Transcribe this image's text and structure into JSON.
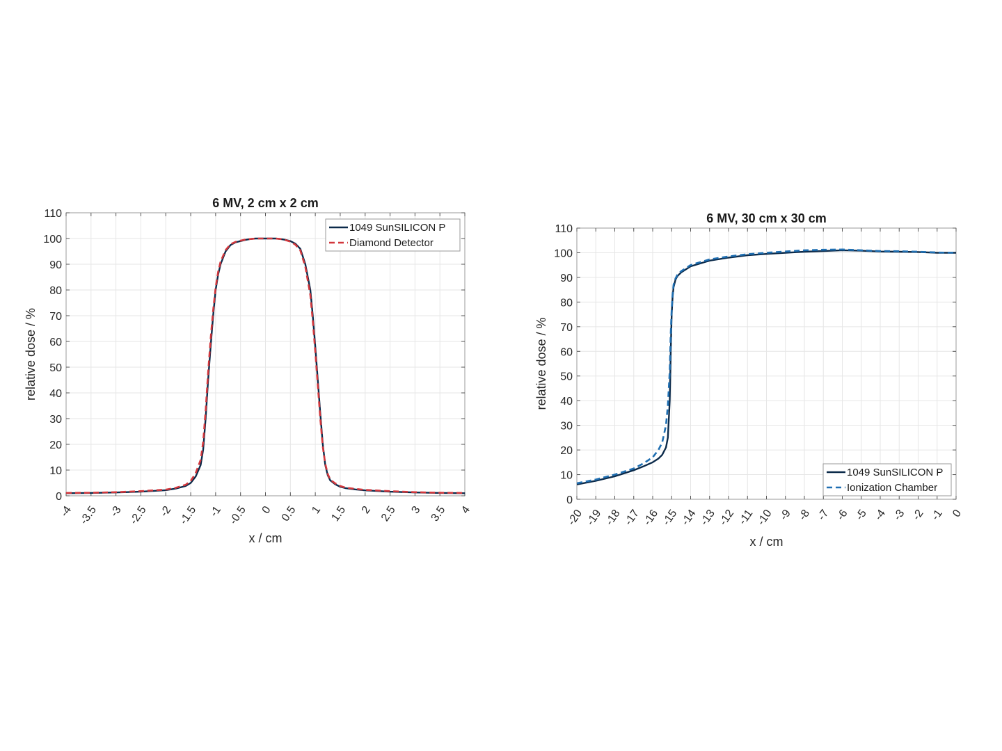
{
  "chart_data": [
    {
      "type": "line",
      "title": "6 MV, 2 cm x 2 cm",
      "xlabel": "x / cm",
      "ylabel": "relative dose / %",
      "xlim": [
        -4,
        4
      ],
      "ylim": [
        0,
        110
      ],
      "xticks": [
        -4,
        -3.5,
        -3,
        -2.5,
        -2,
        -1.5,
        -1,
        -0.5,
        0,
        0.5,
        1,
        1.5,
        2,
        2.5,
        3,
        3.5,
        4
      ],
      "xtick_labels": [
        "-4",
        "-3.5",
        "-3",
        "-2.5",
        "-2",
        "-1.5",
        "-1",
        "-0.5",
        "0",
        "0.5",
        "1",
        "1.5",
        "2",
        "2.5",
        "3",
        "3.5",
        "4"
      ],
      "yticks": [
        0,
        10,
        20,
        30,
        40,
        50,
        60,
        70,
        80,
        90,
        100,
        110
      ],
      "ytick_labels": [
        "0",
        "10",
        "20",
        "30",
        "40",
        "50",
        "60",
        "70",
        "80",
        "90",
        "100",
        "110"
      ],
      "grid": true,
      "legend": "top-right",
      "series": [
        {
          "name": "1049 SunSILICON P",
          "color": "#0b2a4a",
          "dash": "solid",
          "x": [
            -4,
            -3.5,
            -3,
            -2.5,
            -2,
            -1.8,
            -1.6,
            -1.5,
            -1.4,
            -1.3,
            -1.25,
            -1.2,
            -1.15,
            -1.1,
            -1.05,
            -1,
            -0.95,
            -0.9,
            -0.8,
            -0.7,
            -0.6,
            -0.5,
            -0.4,
            -0.3,
            -0.2,
            -0.1,
            0,
            0.1,
            0.2,
            0.3,
            0.4,
            0.5,
            0.6,
            0.7,
            0.8,
            0.9,
            0.95,
            1,
            1.05,
            1.1,
            1.15,
            1.2,
            1.25,
            1.3,
            1.4,
            1.5,
            1.6,
            1.8,
            2,
            2.5,
            3,
            3.5,
            4
          ],
          "y": [
            1,
            1.1,
            1.3,
            1.6,
            2.2,
            2.8,
            3.8,
            5,
            7.5,
            12,
            18,
            30,
            45,
            58,
            70,
            80,
            86,
            90,
            95,
            97.5,
            98.5,
            99,
            99.5,
            99.8,
            100,
            100,
            100,
            100,
            100,
            99.8,
            99.5,
            99,
            98,
            96,
            90,
            80,
            70,
            58,
            45,
            32,
            20,
            12,
            8,
            6,
            4.5,
            3.5,
            3,
            2.5,
            2.1,
            1.6,
            1.3,
            1.1,
            1
          ]
        },
        {
          "name": "Diamond Detector",
          "color": "#d2373c",
          "dash": "dashed",
          "x": [
            -4,
            -3.5,
            -3,
            -2.5,
            -2,
            -1.8,
            -1.6,
            -1.5,
            -1.4,
            -1.3,
            -1.25,
            -1.2,
            -1.15,
            -1.1,
            -1.05,
            -1,
            -0.95,
            -0.9,
            -0.8,
            -0.7,
            -0.6,
            -0.5,
            -0.4,
            -0.3,
            -0.2,
            -0.1,
            0,
            0.1,
            0.2,
            0.3,
            0.4,
            0.5,
            0.6,
            0.7,
            0.8,
            0.9,
            0.95,
            1,
            1.05,
            1.1,
            1.15,
            1.2,
            1.25,
            1.3,
            1.4,
            1.5,
            1.6,
            1.8,
            2,
            2.5,
            3,
            3.5,
            4
          ],
          "y": [
            1.1,
            1.2,
            1.4,
            1.8,
            2.4,
            3.1,
            4.3,
            5.8,
            8.8,
            14,
            21,
            33,
            48,
            61,
            72,
            81,
            87,
            91,
            95.5,
            97.8,
            98.7,
            99.2,
            99.6,
            99.8,
            100,
            100,
            100,
            100,
            100,
            99.8,
            99.4,
            98.8,
            97.6,
            95.4,
            89,
            78,
            68,
            56,
            43,
            30,
            19,
            12.5,
            8.5,
            6.3,
            4.8,
            3.8,
            3.2,
            2.7,
            2.3,
            1.8,
            1.4,
            1.2,
            1.1
          ]
        }
      ]
    },
    {
      "type": "line",
      "title": "6 MV, 30 cm x 30 cm",
      "xlabel": "x / cm",
      "ylabel": "relative dose / %",
      "xlim": [
        -20,
        0
      ],
      "ylim": [
        0,
        110
      ],
      "xticks": [
        -20,
        -19,
        -18,
        -17,
        -16,
        -15,
        -14,
        -13,
        -12,
        -11,
        -10,
        -9,
        -8,
        -7,
        -6,
        -5,
        -4,
        -3,
        -2,
        -1,
        0
      ],
      "xtick_labels": [
        "-20",
        "-19",
        "-18",
        "-17",
        "-16",
        "-15",
        "-14",
        "-13",
        "-12",
        "-11",
        "-10",
        "-9",
        "-8",
        "-7",
        "-6",
        "-5",
        "-4",
        "-3",
        "-2",
        "-1",
        "0"
      ],
      "yticks": [
        0,
        10,
        20,
        30,
        40,
        50,
        60,
        70,
        80,
        90,
        100,
        110
      ],
      "ytick_labels": [
        "0",
        "10",
        "20",
        "30",
        "40",
        "50",
        "60",
        "70",
        "80",
        "90",
        "100",
        "110"
      ],
      "grid": true,
      "legend": "bottom-right",
      "series": [
        {
          "name": "1049 SunSILICON P",
          "color": "#0b2a4a",
          "dash": "solid",
          "x": [
            -20,
            -19,
            -18,
            -17,
            -16.5,
            -16,
            -15.7,
            -15.5,
            -15.3,
            -15.2,
            -15.1,
            -15.05,
            -15,
            -14.95,
            -14.9,
            -14.8,
            -14.7,
            -14.5,
            -14,
            -13,
            -12,
            -11,
            -10,
            -9,
            -8,
            -7,
            -6,
            -5,
            -4,
            -3,
            -2,
            -1,
            0
          ],
          "y": [
            6,
            7.5,
            9.3,
            11.8,
            13.3,
            15,
            16.5,
            18,
            21,
            25,
            40,
            60,
            75,
            82,
            86,
            89,
            90.5,
            92,
            94.5,
            96.8,
            98,
            99,
            99.5,
            100,
            100.4,
            100.7,
            101,
            100.8,
            100.5,
            100.4,
            100.3,
            100,
            100
          ]
        },
        {
          "name": "Ionization Chamber",
          "color": "#1f6fb2",
          "dash": "dashed",
          "x": [
            -20,
            -19,
            -18,
            -17,
            -16.5,
            -16,
            -15.7,
            -15.5,
            -15.3,
            -15.2,
            -15.1,
            -15.05,
            -15,
            -14.95,
            -14.9,
            -14.8,
            -14.7,
            -14.5,
            -14,
            -13,
            -12,
            -11,
            -10,
            -9,
            -8,
            -7,
            -6,
            -5,
            -4,
            -3,
            -2,
            -1,
            0
          ],
          "y": [
            6.5,
            8,
            10,
            12.5,
            14.5,
            17,
            20,
            23,
            30,
            38,
            52,
            67,
            77,
            83,
            87,
            89.5,
            91,
            92.5,
            95,
            97.3,
            98.5,
            99.4,
            100,
            100.5,
            101,
            101.2,
            101.3,
            101,
            100.7,
            100.6,
            100.4,
            100.1,
            100
          ]
        }
      ]
    }
  ]
}
